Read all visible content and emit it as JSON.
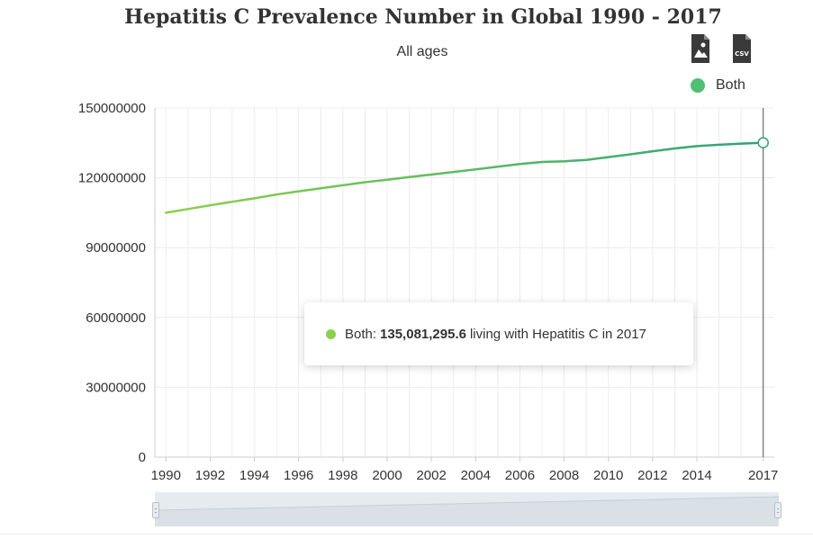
{
  "header": {
    "title": "Hepatitis C Prevalence Number in Global 1990 - 2017",
    "subtitle": "All ages"
  },
  "toolbar": {
    "image_icon": "image-download-icon",
    "csv_icon": "csv-download-icon",
    "csv_label": "CSV"
  },
  "legend": {
    "label": "Both",
    "color": "#4fbf73"
  },
  "tooltip": {
    "series": "Both:",
    "value": "135,081,295.6",
    "suffix": "living with Hepatitis C in 2017",
    "dot_color": "#8cd14a"
  },
  "chart_data": {
    "type": "line",
    "title": "Hepatitis C Prevalence Number in Global 1990 - 2017",
    "subtitle": "All ages",
    "xlabel": "",
    "ylabel": "",
    "x": [
      1990,
      1991,
      1992,
      1993,
      1994,
      1995,
      1996,
      1997,
      1998,
      1999,
      2000,
      2001,
      2002,
      2003,
      2004,
      2005,
      2006,
      2007,
      2008,
      2009,
      2010,
      2011,
      2012,
      2013,
      2014,
      2015,
      2016,
      2017
    ],
    "series": [
      {
        "name": "Both",
        "values": [
          105000000,
          106600000,
          108200000,
          109700000,
          111200000,
          112800000,
          114200000,
          115500000,
          116800000,
          118100000,
          119200000,
          120300000,
          121400000,
          122500000,
          123600000,
          124800000,
          125900000,
          126800000,
          127100000,
          127700000,
          128900000,
          130100000,
          131400000,
          132600000,
          133600000,
          134200000,
          134700000,
          135081295.6
        ]
      }
    ],
    "x_ticks": [
      "1990",
      "1992",
      "1994",
      "1996",
      "1998",
      "2000",
      "2002",
      "2004",
      "2006",
      "2008",
      "2010",
      "2012",
      "2014",
      "2017"
    ],
    "y_ticks": [
      "0",
      "30000000",
      "60000000",
      "90000000",
      "120000000",
      "150000000"
    ],
    "ylim": [
      0,
      150000000
    ],
    "xlim": [
      1989.5,
      2017.5
    ],
    "grid": true,
    "legend_position": "top-right",
    "highlight_x": 2017,
    "colors": {
      "line_start": "#8cd14a",
      "line_end": "#2ea37a",
      "grid": "#ececec",
      "axis": "#cccccc",
      "crosshair": "#555555"
    }
  }
}
